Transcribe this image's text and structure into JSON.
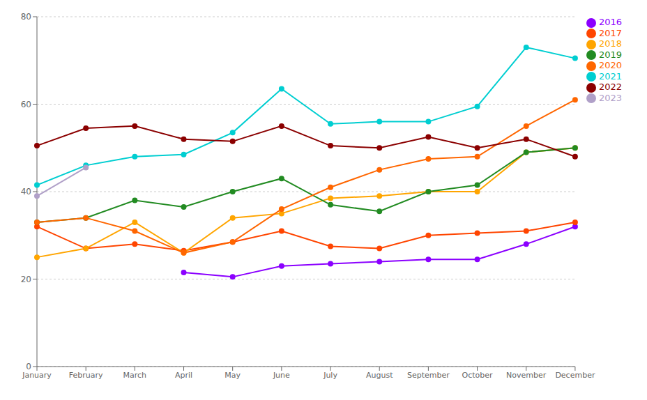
{
  "chart_data": {
    "type": "line",
    "categories": [
      "January",
      "February",
      "March",
      "April",
      "May",
      "June",
      "July",
      "August",
      "September",
      "October",
      "November",
      "December"
    ],
    "series": [
      {
        "name": "2016",
        "color": "#8B00FF",
        "values": [
          null,
          null,
          null,
          21.5,
          20.5,
          23,
          23.5,
          24,
          24.5,
          24.5,
          28,
          32
        ]
      },
      {
        "name": "2017",
        "color": "#FF4500",
        "values": [
          32,
          27,
          28,
          26.5,
          28.5,
          31,
          27.5,
          27,
          30,
          30.5,
          31,
          33
        ]
      },
      {
        "name": "2018",
        "color": "#FFA500",
        "values": [
          25,
          27,
          33,
          26,
          34,
          35,
          38.5,
          39,
          40,
          40,
          49,
          50
        ]
      },
      {
        "name": "2019",
        "color": "#228B22",
        "values": [
          33,
          34,
          38,
          36.5,
          40,
          43,
          37,
          35.5,
          40,
          41.5,
          49,
          50
        ]
      },
      {
        "name": "2020",
        "color": "#FF6600",
        "values": [
          33,
          34,
          31,
          26,
          28.5,
          36,
          41,
          45,
          47.5,
          48,
          55,
          61
        ]
      },
      {
        "name": "2021",
        "color": "#00CED1",
        "values": [
          41.5,
          46,
          48,
          48.5,
          53.5,
          63.5,
          55.5,
          56,
          56,
          59.5,
          73,
          70.5
        ]
      },
      {
        "name": "2022",
        "color": "#8B0000",
        "values": [
          50.5,
          54.5,
          55,
          52,
          51.5,
          55,
          50.5,
          50,
          52.5,
          50,
          52,
          48
        ]
      },
      {
        "name": "2023",
        "color": "#B0A0C8",
        "values": [
          39,
          45.5,
          null,
          null,
          null,
          null,
          null,
          null,
          null,
          null,
          null,
          null
        ]
      }
    ],
    "ylim": [
      0,
      80
    ],
    "yticks": [
      0,
      20,
      40,
      60,
      80
    ],
    "grid": true,
    "legend": "right",
    "marker": "circle"
  }
}
